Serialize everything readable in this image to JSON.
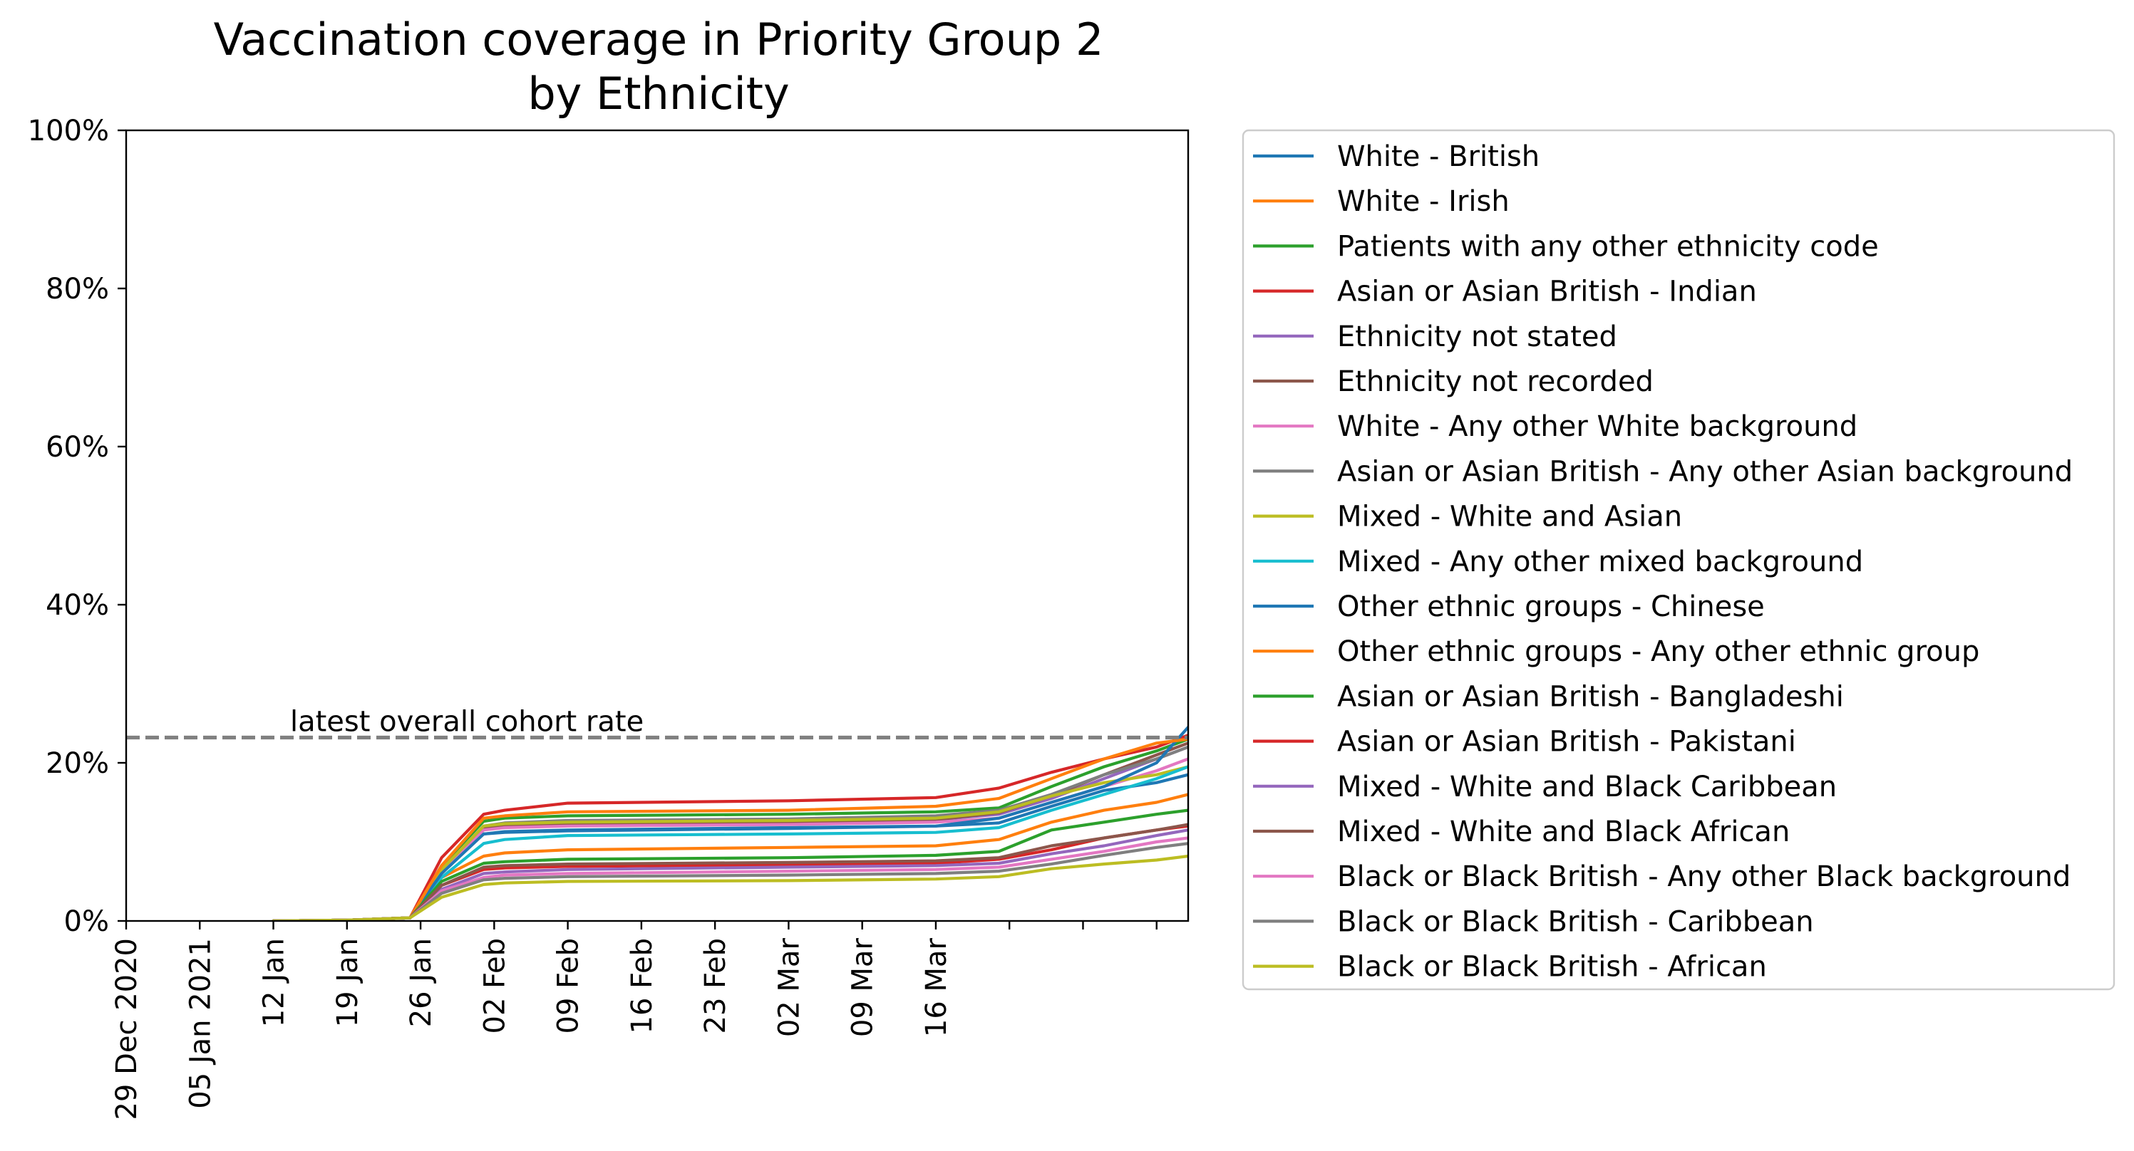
{
  "chart_data": {
    "type": "line",
    "title": "Vaccination coverage in Priority Group 2",
    "subtitle": "by Ethnicity",
    "xlabel": "",
    "ylabel": "",
    "ylim": [
      0,
      100
    ],
    "y_ticks": [
      0,
      20,
      40,
      60,
      80,
      100
    ],
    "y_tick_labels": [
      "0%",
      "20%",
      "40%",
      "60%",
      "80%",
      "100%"
    ],
    "x_range": [
      "2020-12-29",
      "2021-04-09"
    ],
    "x_ticks": [
      "2020-12-29",
      "2021-01-05",
      "2021-01-12",
      "2021-01-19",
      "2021-01-26",
      "2021-02-02",
      "2021-02-09",
      "2021-02-16",
      "2021-02-23",
      "2021-03-02",
      "2021-03-09",
      "2021-03-16",
      "2021-03-23",
      "2021-03-30",
      "2021-04-06"
    ],
    "x_tick_labels": [
      "29 Dec 2020",
      "05 Jan 2021",
      "12 Jan",
      "19 Jan",
      "26 Jan",
      "02 Feb",
      "09 Feb",
      "16 Feb",
      "23 Feb",
      "02 Mar",
      "09 Mar",
      "16 Mar",
      "",
      "",
      ""
    ],
    "grid": false,
    "legend_position": "outside-right",
    "reference_line": {
      "label": "latest overall cohort rate",
      "value": 23.2,
      "color": "#808080"
    },
    "series": [
      {
        "name": "White - British",
        "color": "#1f77b4",
        "x": [
          "2021-01-12",
          "2021-01-19",
          "2021-01-25",
          "2021-01-28",
          "2021-02-01",
          "2021-02-03",
          "2021-02-09",
          "2021-03-02",
          "2021-03-16",
          "2021-03-22",
          "2021-03-27",
          "2021-04-01",
          "2021-04-06",
          "2021-04-09"
        ],
        "y": [
          0,
          0.1,
          0.4,
          6.5,
          11,
          11.3,
          11.5,
          11.8,
          12,
          12.4,
          14.5,
          16.5,
          17.5,
          18.5
        ]
      },
      {
        "name": "White - Irish",
        "color": "#ff7f0e",
        "x": [
          "2021-01-12",
          "2021-01-19",
          "2021-01-25",
          "2021-01-28",
          "2021-02-01",
          "2021-02-03",
          "2021-02-09",
          "2021-03-02",
          "2021-03-16",
          "2021-03-22",
          "2021-03-27",
          "2021-04-01",
          "2021-04-06",
          "2021-04-09"
        ],
        "y": [
          0,
          0.1,
          0.4,
          5.5,
          8.2,
          8.6,
          9,
          9.3,
          9.5,
          10.3,
          12.5,
          14,
          15,
          16
        ]
      },
      {
        "name": "Patients with any other ethnicity code",
        "color": "#2ca02c",
        "x": [
          "2021-01-12",
          "2021-01-19",
          "2021-01-25",
          "2021-01-28",
          "2021-02-01",
          "2021-02-03",
          "2021-02-09",
          "2021-03-02",
          "2021-03-16",
          "2021-03-22",
          "2021-03-27",
          "2021-04-01",
          "2021-04-06",
          "2021-04-09"
        ],
        "y": [
          0,
          0.1,
          0.4,
          7,
          12.6,
          13,
          13.3,
          13.5,
          13.8,
          14.3,
          17,
          19.5,
          21.5,
          23
        ]
      },
      {
        "name": "Asian or Asian British - Indian",
        "color": "#d62728",
        "x": [
          "2021-01-12",
          "2021-01-19",
          "2021-01-25",
          "2021-01-28",
          "2021-02-01",
          "2021-02-03",
          "2021-02-09",
          "2021-03-02",
          "2021-03-16",
          "2021-03-22",
          "2021-03-27",
          "2021-04-01",
          "2021-04-06",
          "2021-04-09"
        ],
        "y": [
          0,
          0.1,
          0.4,
          8,
          13.5,
          14,
          14.9,
          15.2,
          15.6,
          16.8,
          18.8,
          20.5,
          22,
          23.5
        ]
      },
      {
        "name": "Ethnicity not stated",
        "color": "#9467bd",
        "x": [
          "2021-01-12",
          "2021-01-19",
          "2021-01-25",
          "2021-01-28",
          "2021-02-01",
          "2021-02-03",
          "2021-02-09",
          "2021-03-02",
          "2021-03-16",
          "2021-03-22",
          "2021-03-27",
          "2021-04-01",
          "2021-04-06",
          "2021-04-09"
        ],
        "y": [
          0,
          0.1,
          0.4,
          6.5,
          11.8,
          12,
          12.2,
          12.4,
          12.8,
          13.5,
          15.5,
          18,
          20.5,
          22
        ]
      },
      {
        "name": "Ethnicity not recorded",
        "color": "#8c564b",
        "x": [
          "2021-01-12",
          "2021-01-19",
          "2021-01-25",
          "2021-01-28",
          "2021-02-01",
          "2021-02-03",
          "2021-02-09",
          "2021-03-02",
          "2021-03-16",
          "2021-03-22",
          "2021-03-27",
          "2021-04-01",
          "2021-04-06",
          "2021-04-09"
        ],
        "y": [
          0,
          0.1,
          0.4,
          6.5,
          11.8,
          12,
          12.2,
          12.4,
          12.8,
          13.7,
          15.8,
          18.5,
          21,
          22.5
        ]
      },
      {
        "name": "White - Any other White background",
        "color": "#e377c2",
        "x": [
          "2021-01-12",
          "2021-01-19",
          "2021-01-25",
          "2021-01-28",
          "2021-02-01",
          "2021-02-03",
          "2021-02-09",
          "2021-03-02",
          "2021-03-16",
          "2021-03-22",
          "2021-03-27",
          "2021-04-01",
          "2021-04-06",
          "2021-04-09"
        ],
        "y": [
          0,
          0.1,
          0.4,
          6,
          11.5,
          11.8,
          12,
          12.2,
          12.5,
          13,
          15,
          17,
          19,
          20.5
        ]
      },
      {
        "name": "Asian or Asian British - Any other Asian background",
        "color": "#7f7f7f",
        "x": [
          "2021-01-12",
          "2021-01-19",
          "2021-01-25",
          "2021-01-28",
          "2021-02-01",
          "2021-02-03",
          "2021-02-09",
          "2021-03-02",
          "2021-03-16",
          "2021-03-22",
          "2021-03-27",
          "2021-04-01",
          "2021-04-06",
          "2021-04-09"
        ],
        "y": [
          0,
          0.1,
          0.4,
          6.5,
          12,
          12.4,
          12.7,
          12.9,
          13.3,
          14,
          16,
          18.5,
          20.5,
          22
        ]
      },
      {
        "name": "Mixed - White and Asian",
        "color": "#bcbd22",
        "x": [
          "2021-01-12",
          "2021-01-19",
          "2021-01-25",
          "2021-01-28",
          "2021-02-01",
          "2021-02-03",
          "2021-02-09",
          "2021-03-02",
          "2021-03-16",
          "2021-03-22",
          "2021-03-27",
          "2021-04-01",
          "2021-04-06",
          "2021-04-09"
        ],
        "y": [
          0,
          0.1,
          0.4,
          6.5,
          12,
          12.3,
          12.5,
          12.7,
          13,
          13.8,
          15.8,
          17.5,
          18.5,
          19.5
        ]
      },
      {
        "name": "Mixed - Any other mixed background",
        "color": "#17becf",
        "x": [
          "2021-01-12",
          "2021-01-19",
          "2021-01-25",
          "2021-01-28",
          "2021-02-01",
          "2021-02-03",
          "2021-02-09",
          "2021-03-02",
          "2021-03-16",
          "2021-03-22",
          "2021-03-27",
          "2021-04-01",
          "2021-04-06",
          "2021-04-09"
        ],
        "y": [
          0,
          0.1,
          0.4,
          5.5,
          9.8,
          10.3,
          10.8,
          11,
          11.2,
          11.8,
          14,
          16,
          18,
          19.5
        ]
      },
      {
        "name": "Other ethnic groups - Chinese",
        "color": "#1f77b4",
        "x": [
          "2021-01-12",
          "2021-01-19",
          "2021-01-25",
          "2021-01-28",
          "2021-02-01",
          "2021-02-03",
          "2021-02-09",
          "2021-03-02",
          "2021-03-16",
          "2021-03-22",
          "2021-03-27",
          "2021-04-01",
          "2021-04-06",
          "2021-04-09"
        ],
        "y": [
          0,
          0.1,
          0.4,
          6,
          11,
          11.2,
          11.4,
          11.7,
          12,
          13,
          15,
          17,
          20,
          24.5
        ]
      },
      {
        "name": "Other ethnic groups - Any other ethnic group",
        "color": "#ff7f0e",
        "x": [
          "2021-01-12",
          "2021-01-19",
          "2021-01-25",
          "2021-01-28",
          "2021-02-01",
          "2021-02-03",
          "2021-02-09",
          "2021-03-02",
          "2021-03-16",
          "2021-03-22",
          "2021-03-27",
          "2021-04-01",
          "2021-04-06",
          "2021-04-09"
        ],
        "y": [
          0,
          0.1,
          0.4,
          7,
          13,
          13.3,
          13.8,
          14,
          14.5,
          15.5,
          18,
          20.5,
          22.5,
          23
        ]
      },
      {
        "name": "Asian or Asian British - Bangladeshi",
        "color": "#2ca02c",
        "x": [
          "2021-01-12",
          "2021-01-19",
          "2021-01-25",
          "2021-01-28",
          "2021-02-01",
          "2021-02-03",
          "2021-02-09",
          "2021-03-02",
          "2021-03-16",
          "2021-03-22",
          "2021-03-27",
          "2021-04-01",
          "2021-04-06",
          "2021-04-09"
        ],
        "y": [
          0,
          0.1,
          0.4,
          5,
          7.3,
          7.5,
          7.8,
          8,
          8.3,
          8.8,
          11.5,
          12.5,
          13.5,
          14
        ]
      },
      {
        "name": "Asian or Asian British - Pakistani",
        "color": "#d62728",
        "x": [
          "2021-01-12",
          "2021-01-19",
          "2021-01-25",
          "2021-01-28",
          "2021-02-01",
          "2021-02-03",
          "2021-02-09",
          "2021-03-02",
          "2021-03-16",
          "2021-03-22",
          "2021-03-27",
          "2021-04-01",
          "2021-04-06",
          "2021-04-09"
        ],
        "y": [
          0,
          0.1,
          0.4,
          4.5,
          6.5,
          6.7,
          6.9,
          7.1,
          7.3,
          7.8,
          9,
          10.5,
          11.5,
          12
        ]
      },
      {
        "name": "Mixed - White and Black Caribbean",
        "color": "#9467bd",
        "x": [
          "2021-01-12",
          "2021-01-19",
          "2021-01-25",
          "2021-01-28",
          "2021-02-01",
          "2021-02-03",
          "2021-02-09",
          "2021-03-02",
          "2021-03-16",
          "2021-03-22",
          "2021-03-27",
          "2021-04-01",
          "2021-04-06",
          "2021-04-09"
        ],
        "y": [
          0,
          0.1,
          0.4,
          4,
          6,
          6.2,
          6.5,
          6.8,
          7,
          7.3,
          8.5,
          9.5,
          10.8,
          11.5
        ]
      },
      {
        "name": "Mixed - White and Black African",
        "color": "#8c564b",
        "x": [
          "2021-01-12",
          "2021-01-19",
          "2021-01-25",
          "2021-01-28",
          "2021-02-01",
          "2021-02-03",
          "2021-02-09",
          "2021-03-02",
          "2021-03-16",
          "2021-03-22",
          "2021-03-27",
          "2021-04-01",
          "2021-04-06",
          "2021-04-09"
        ],
        "y": [
          0,
          0.1,
          0.4,
          4.5,
          6.8,
          7,
          7.2,
          7.4,
          7.6,
          8,
          9.5,
          10.5,
          11.5,
          12.2
        ]
      },
      {
        "name": "Black or Black British - Any other Black background",
        "color": "#e377c2",
        "x": [
          "2021-01-12",
          "2021-01-19",
          "2021-01-25",
          "2021-01-28",
          "2021-02-01",
          "2021-02-03",
          "2021-02-09",
          "2021-03-02",
          "2021-03-16",
          "2021-03-22",
          "2021-03-27",
          "2021-04-01",
          "2021-04-06",
          "2021-04-09"
        ],
        "y": [
          0,
          0.1,
          0.4,
          3.8,
          5.5,
          5.8,
          6,
          6.3,
          6.5,
          6.8,
          7.8,
          8.8,
          10,
          10.5
        ]
      },
      {
        "name": "Black or Black British - Caribbean",
        "color": "#7f7f7f",
        "x": [
          "2021-01-12",
          "2021-01-19",
          "2021-01-25",
          "2021-01-28",
          "2021-02-01",
          "2021-02-03",
          "2021-02-09",
          "2021-03-02",
          "2021-03-16",
          "2021-03-22",
          "2021-03-27",
          "2021-04-01",
          "2021-04-06",
          "2021-04-09"
        ],
        "y": [
          0,
          0.1,
          0.4,
          3.5,
          5.2,
          5.4,
          5.6,
          5.8,
          6,
          6.3,
          7.2,
          8.3,
          9.3,
          9.8
        ]
      },
      {
        "name": "Black or Black British - African",
        "color": "#bcbd22",
        "x": [
          "2021-01-12",
          "2021-01-19",
          "2021-01-25",
          "2021-01-28",
          "2021-02-01",
          "2021-02-03",
          "2021-02-09",
          "2021-03-02",
          "2021-03-16",
          "2021-03-22",
          "2021-03-27",
          "2021-04-01",
          "2021-04-06",
          "2021-04-09"
        ],
        "y": [
          0,
          0.1,
          0.4,
          3,
          4.6,
          4.8,
          5,
          5.1,
          5.3,
          5.6,
          6.6,
          7.2,
          7.7,
          8.2
        ]
      }
    ]
  }
}
